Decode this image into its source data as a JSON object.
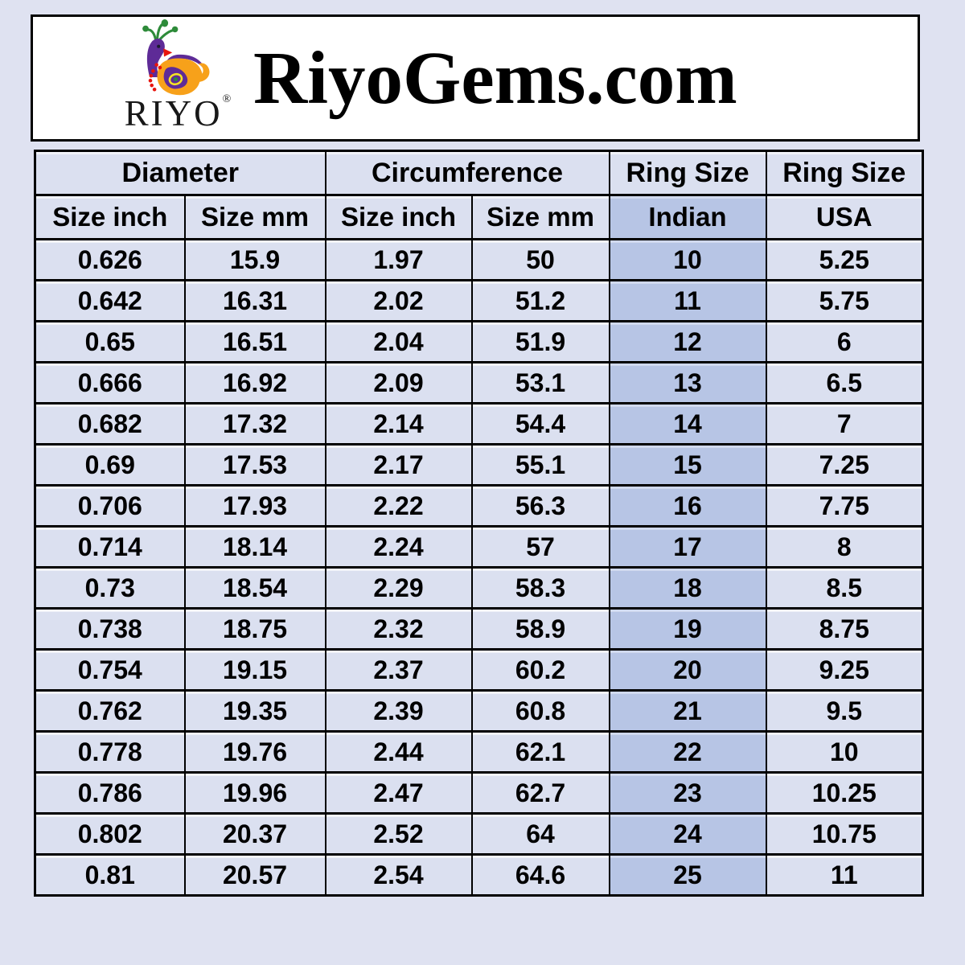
{
  "header": {
    "title": "RiyoGems.com",
    "logo": {
      "brand": "RIYO",
      "registered": "®",
      "icon": "peacock-icon"
    }
  },
  "chart_data": {
    "type": "table",
    "group_headers": [
      {
        "label": "Diameter",
        "span": 2
      },
      {
        "label": "Circumference",
        "span": 2
      },
      {
        "label": "Ring Size",
        "span": 1
      },
      {
        "label": "Ring Size",
        "span": 1
      }
    ],
    "columns": [
      "Size inch",
      "Size mm",
      "Size inch",
      "Size mm",
      "Indian",
      "USA"
    ],
    "highlight_column_index": 4,
    "highlight_column_label": "Indian",
    "rows": [
      [
        "0.626",
        "15.9",
        "1.97",
        "50",
        "10",
        "5.25"
      ],
      [
        "0.642",
        "16.31",
        "2.02",
        "51.2",
        "11",
        "5.75"
      ],
      [
        "0.65",
        "16.51",
        "2.04",
        "51.9",
        "12",
        "6"
      ],
      [
        "0.666",
        "16.92",
        "2.09",
        "53.1",
        "13",
        "6.5"
      ],
      [
        "0.682",
        "17.32",
        "2.14",
        "54.4",
        "14",
        "7"
      ],
      [
        "0.69",
        "17.53",
        "2.17",
        "55.1",
        "15",
        "7.25"
      ],
      [
        "0.706",
        "17.93",
        "2.22",
        "56.3",
        "16",
        "7.75"
      ],
      [
        "0.714",
        "18.14",
        "2.24",
        "57",
        "17",
        "8"
      ],
      [
        "0.73",
        "18.54",
        "2.29",
        "58.3",
        "18",
        "8.5"
      ],
      [
        "0.738",
        "18.75",
        "2.32",
        "58.9",
        "19",
        "8.75"
      ],
      [
        "0.754",
        "19.15",
        "2.37",
        "60.2",
        "20",
        "9.25"
      ],
      [
        "0.762",
        "19.35",
        "2.39",
        "60.8",
        "21",
        "9.5"
      ],
      [
        "0.778",
        "19.76",
        "2.44",
        "62.1",
        "22",
        "10"
      ],
      [
        "0.786",
        "19.96",
        "2.47",
        "62.7",
        "23",
        "10.25"
      ],
      [
        "0.802",
        "20.37",
        "2.52",
        "64",
        "24",
        "10.75"
      ],
      [
        "0.81",
        "20.57",
        "2.54",
        "64.6",
        "25",
        "11"
      ]
    ]
  },
  "colors": {
    "page_bg": "#dfe2f1",
    "cell_bg": "#dbe0f0",
    "indian_col_bg": "#b7c5e5",
    "border": "#000000",
    "header_box_bg": "#ffffff",
    "title_color": "#000000",
    "logo_purple": "#5e2b97",
    "logo_orange": "#f7a11a",
    "logo_green": "#2e8b3a",
    "logo_red": "#e8150d",
    "logo_yellow": "#f4e224"
  }
}
